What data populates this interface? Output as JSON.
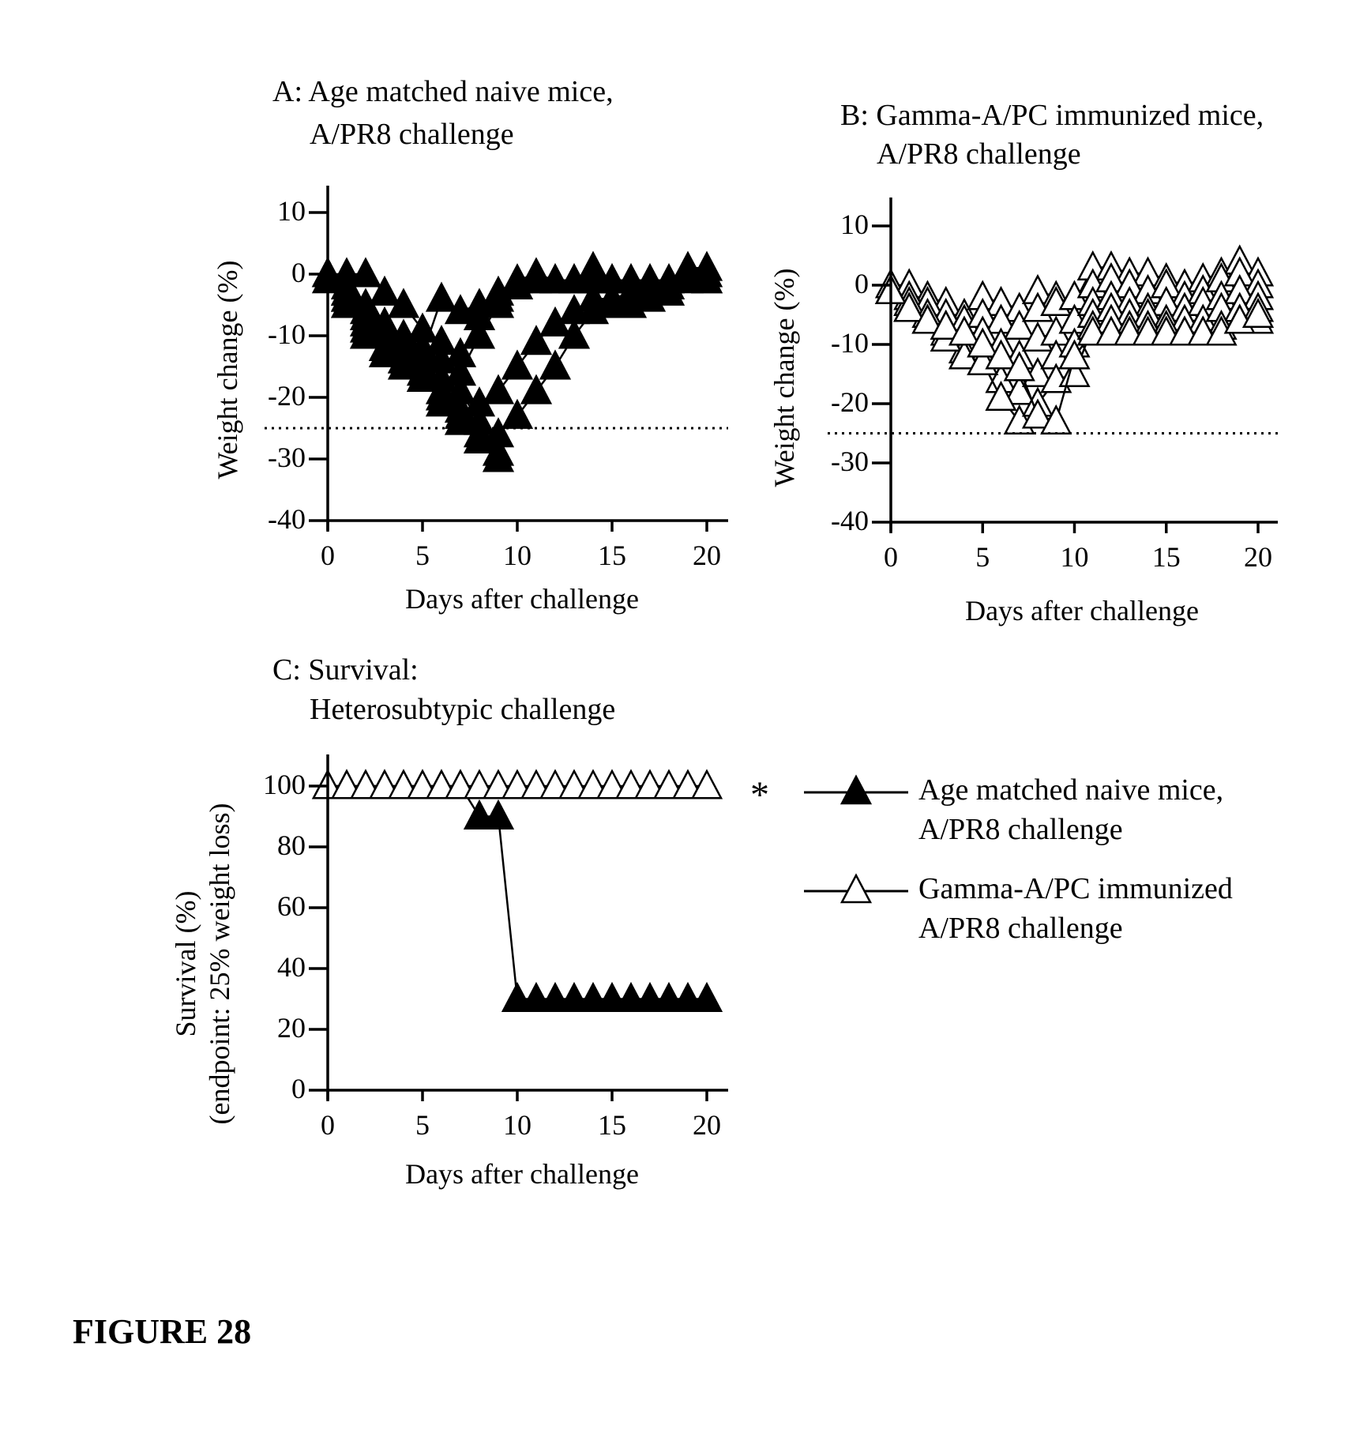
{
  "figure_label": "FIGURE 28",
  "legend": {
    "significance_marker": "*",
    "items": [
      {
        "line1": "Age matched naive mice,",
        "line2": "A/PR8 challenge",
        "marker": "filled-triangle"
      },
      {
        "line1": "Gamma-A/PC immunized",
        "line2": "A/PR8 challenge",
        "marker": "open-triangle"
      }
    ]
  },
  "chart_data": [
    {
      "panel": "A",
      "type": "line",
      "title_line1": "A:  Age matched naive mice,",
      "title_line2": "A/PR8 challenge",
      "xlabel": "Days after challenge",
      "ylabel": "Weight change (%)",
      "xlim": [
        0,
        20
      ],
      "ylim": [
        -40,
        10
      ],
      "xticks": [
        0,
        5,
        10,
        15,
        20
      ],
      "yticks": [
        10,
        0,
        -10,
        -20,
        -30,
        -40
      ],
      "reference_line_y": -25,
      "marker": "filled-triangle",
      "series": [
        {
          "x": [
            0,
            1,
            2,
            3,
            4,
            5,
            6,
            7,
            8,
            9,
            10,
            11,
            12,
            13,
            14,
            15,
            16,
            17,
            18,
            19,
            20
          ],
          "y": [
            0,
            -3,
            -6,
            -9,
            -11,
            -13,
            -4,
            -6,
            -5,
            -4,
            -2,
            -1,
            -1,
            -1,
            -1,
            -1,
            -1,
            -1,
            -1,
            0,
            0
          ]
        },
        {
          "x": [
            0,
            1,
            2,
            3,
            4,
            5,
            6,
            7,
            8,
            9,
            10,
            11,
            12,
            13,
            14,
            15,
            16,
            17,
            18,
            19,
            20
          ],
          "y": [
            0,
            -2,
            -5,
            -8,
            -10,
            -12,
            -14,
            -16,
            -10,
            -5,
            -2,
            -1,
            -1,
            -1,
            -1,
            -1,
            -1,
            -1,
            -1,
            0,
            0
          ]
        },
        {
          "x": [
            0,
            1,
            2,
            3,
            4,
            5,
            6,
            7,
            8,
            9,
            10,
            11,
            12,
            13,
            14,
            15,
            16,
            17,
            18,
            19,
            20
          ],
          "y": [
            0,
            -3,
            -7,
            -12,
            -14,
            -16,
            -21,
            -24,
            -21,
            -19,
            -15,
            -11,
            -8,
            -6,
            -4,
            -4,
            -3,
            -2,
            -2,
            0,
            -1
          ]
        },
        {
          "x": [
            0,
            1,
            2,
            3,
            4,
            5,
            6,
            7,
            8,
            9,
            10,
            11,
            12,
            13,
            14,
            15,
            16,
            17,
            18,
            19,
            20
          ],
          "y": [
            0,
            -4,
            -8,
            -10,
            -12,
            -15,
            -17,
            -19,
            -24,
            -26,
            -23,
            -19,
            -15,
            -10,
            -6,
            -5,
            -5,
            -4,
            -3,
            -1,
            -1
          ]
        },
        {
          "x": [
            0,
            1,
            2,
            3,
            4,
            5,
            6,
            7,
            8,
            9
          ],
          "y": [
            0,
            -4,
            -9,
            -13,
            -15,
            -17,
            -19,
            -22,
            -26,
            -29
          ]
        },
        {
          "x": [
            0,
            1,
            2,
            3,
            4,
            5,
            6,
            7,
            8,
            9
          ],
          "y": [
            -1,
            -5,
            -10,
            -12,
            -14,
            -17,
            -20,
            -23,
            -27,
            -30
          ]
        },
        {
          "x": [
            0,
            1,
            2,
            3,
            4,
            5,
            6,
            7,
            8,
            9,
            10,
            11,
            12,
            13,
            14,
            15,
            16,
            17,
            18,
            19,
            20
          ],
          "y": [
            0,
            0,
            0,
            -3,
            -5,
            -9,
            -11,
            -13,
            -7,
            -3,
            -1,
            0,
            -1,
            -1,
            1,
            -1,
            -1,
            -1,
            -2,
            1,
            1
          ]
        }
      ]
    },
    {
      "panel": "B",
      "type": "line",
      "title_line1": "B:  Gamma-A/PC immunized mice,",
      "title_line2": "A/PR8 challenge",
      "xlabel": "Days after challenge",
      "ylabel": "Weight change (%)",
      "xlim": [
        0,
        20
      ],
      "ylim": [
        -40,
        10
      ],
      "xticks": [
        0,
        5,
        10,
        15,
        20
      ],
      "yticks": [
        10,
        0,
        -10,
        -20,
        -30,
        -40
      ],
      "reference_line_y": -25,
      "marker": "open-triangle",
      "series": [
        {
          "x": [
            0,
            1,
            2,
            3,
            4,
            5,
            6,
            7,
            8,
            9,
            10,
            11,
            12,
            13,
            14,
            15,
            16,
            17,
            18,
            19,
            20
          ],
          "y": [
            0,
            0,
            -2,
            -3,
            -5,
            -2,
            -3,
            -4,
            -1,
            -2,
            -3,
            3,
            3,
            2,
            2,
            1,
            0,
            1,
            2,
            4,
            2
          ]
        },
        {
          "x": [
            0,
            1,
            2,
            3,
            4,
            5,
            6,
            7,
            8,
            9,
            10,
            11,
            12,
            13,
            14,
            15,
            16,
            17,
            18,
            19,
            20
          ],
          "y": [
            -1,
            -2,
            -3,
            -5,
            -6,
            -5,
            -6,
            -7,
            -4,
            -3,
            -2,
            0,
            1,
            0,
            -1,
            0,
            -2,
            -1,
            1,
            2,
            0
          ]
        },
        {
          "x": [
            0,
            1,
            2,
            3,
            4,
            5,
            6,
            7,
            8,
            9,
            10,
            11,
            12,
            13,
            14,
            15,
            16,
            17,
            18,
            19,
            20
          ],
          "y": [
            -1,
            -3,
            -5,
            -7,
            -9,
            -8,
            -10,
            -12,
            -9,
            -8,
            -6,
            -3,
            -2,
            -3,
            -4,
            -3,
            -4,
            -3,
            -2,
            -1,
            -2
          ]
        },
        {
          "x": [
            0,
            1,
            2,
            3,
            4,
            5,
            6,
            7,
            8,
            9,
            10,
            11,
            12,
            13,
            14,
            15,
            16,
            17,
            18,
            19,
            20
          ],
          "y": [
            -1,
            -4,
            -6,
            -8,
            -11,
            -12,
            -16,
            -18,
            -15,
            -12,
            -10,
            -5,
            -4,
            -5,
            -5,
            -6,
            -6,
            -6,
            -4,
            -4,
            -4
          ]
        },
        {
          "x": [
            0,
            1,
            2,
            3,
            4,
            5,
            6,
            7,
            8,
            9,
            10,
            11,
            12,
            13,
            14,
            15,
            16,
            17,
            18,
            19,
            20
          ],
          "y": [
            -1,
            -4,
            -6,
            -9,
            -12,
            -13,
            -19,
            -23,
            -20,
            -16,
            -15,
            -7,
            -6,
            -7,
            -7,
            -7,
            -8,
            -8,
            -7,
            -6,
            -6
          ]
        },
        {
          "x": [
            0,
            1,
            2,
            3,
            4,
            5,
            6,
            7,
            8,
            9,
            10,
            11,
            12,
            13,
            14,
            15,
            16,
            17,
            18,
            19,
            20
          ],
          "y": [
            -1,
            -4,
            -6,
            -7,
            -8,
            -10,
            -12,
            -14,
            -22,
            -23,
            -12,
            -8,
            -8,
            -8,
            -8,
            -8,
            -8,
            -8,
            -8,
            -6,
            -5
          ]
        }
      ]
    },
    {
      "panel": "C",
      "type": "line",
      "title_line1": "C:  Survival:",
      "title_line2": "Heterosubtypic challenge",
      "xlabel": "Days after challenge",
      "ylabel_line1": "Survival (%)",
      "ylabel_line2": "(endpoint: 25% weight loss)",
      "xlim": [
        0,
        20
      ],
      "ylim": [
        0,
        100
      ],
      "xticks": [
        0,
        5,
        10,
        15,
        20
      ],
      "yticks": [
        100,
        80,
        60,
        40,
        20,
        0
      ],
      "series": [
        {
          "name": "Age matched naive mice, A/PR8 challenge",
          "marker": "filled-triangle",
          "x": [
            0,
            1,
            2,
            3,
            4,
            5,
            6,
            7,
            8,
            9,
            10,
            11,
            12,
            13,
            14,
            15,
            16,
            17,
            18,
            19,
            20
          ],
          "y": [
            100,
            100,
            100,
            100,
            100,
            100,
            100,
            100,
            90,
            90,
            30,
            30,
            30,
            30,
            30,
            30,
            30,
            30,
            30,
            30,
            30
          ]
        },
        {
          "name": "Gamma-A/PC immunized A/PR8 challenge",
          "marker": "open-triangle",
          "x": [
            0,
            1,
            2,
            3,
            4,
            5,
            6,
            7,
            8,
            9,
            10,
            11,
            12,
            13,
            14,
            15,
            16,
            17,
            18,
            19,
            20
          ],
          "y": [
            100,
            100,
            100,
            100,
            100,
            100,
            100,
            100,
            100,
            100,
            100,
            100,
            100,
            100,
            100,
            100,
            100,
            100,
            100,
            100,
            100
          ]
        }
      ]
    }
  ]
}
